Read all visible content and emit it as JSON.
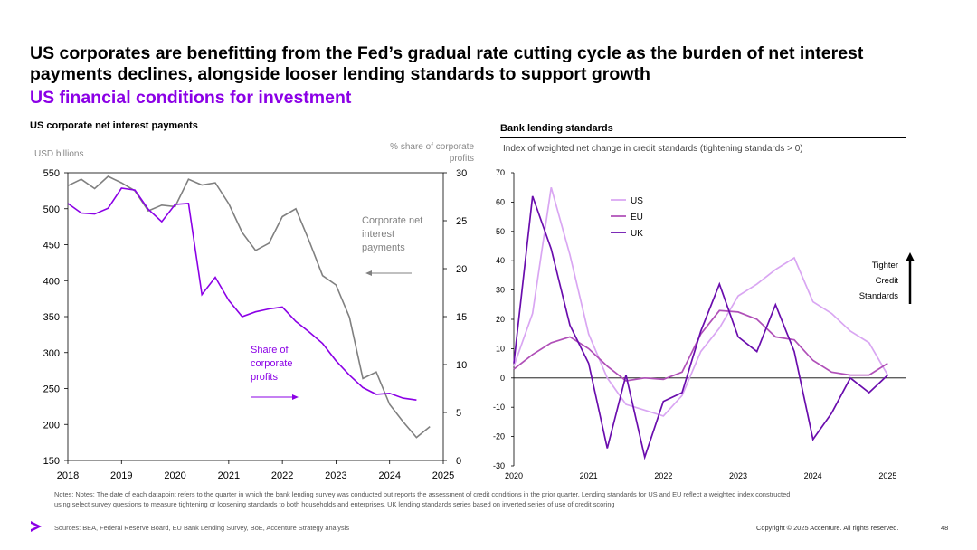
{
  "header": {
    "title": "US corporates are benefitting from the Fed’s gradual rate cutting cycle as the burden of net interest payments declines, alongside looser lending standards to support growth",
    "subtitle": "US financial conditions for investment"
  },
  "colors": {
    "accent": "#8b00e6",
    "grey_series": "#808080",
    "us": "#d9a6f2",
    "eu": "#b050b8",
    "uk": "#6a0dad"
  },
  "chart_data": [
    {
      "type": "line",
      "title": "US corporate net interest payments",
      "ylabel_left": "USD billions",
      "ylabel_right": "% share of corporate profits",
      "ylim_left": [
        150,
        550
      ],
      "ylim_right": [
        0,
        30
      ],
      "yticks_left": [
        "550",
        "500",
        "450",
        "400",
        "350",
        "300",
        "250",
        "200",
        "150"
      ],
      "yticks_right": [
        "30",
        "25",
        "20",
        "15",
        "10",
        "5",
        "0"
      ],
      "xlim": [
        2018,
        2025
      ],
      "xticks": [
        "2018",
        "2019",
        "2020",
        "2021",
        "2022",
        "2023",
        "2024",
        "2025"
      ],
      "series": [
        {
          "name": "Corporate net interest payments",
          "axis": "left",
          "color": "#808080",
          "label": "Corporate net interest payments",
          "x": [
            2018.0,
            2018.25,
            2018.5,
            2018.75,
            2019.0,
            2019.25,
            2019.5,
            2019.75,
            2020.0,
            2020.25,
            2020.5,
            2020.75,
            2021.0,
            2021.25,
            2021.5,
            2021.75,
            2022.0,
            2022.25,
            2022.5,
            2022.75,
            2023.0,
            2023.25,
            2023.5,
            2023.75,
            2024.0,
            2024.25,
            2024.5,
            2024.75,
            2025.0
          ],
          "values": [
            532,
            541,
            528,
            545,
            536,
            525,
            497,
            505,
            503,
            541,
            533,
            536,
            507,
            467,
            442,
            452,
            489,
            500,
            455,
            407,
            394,
            349,
            264,
            273,
            228,
            204,
            182,
            197,
            null
          ]
        },
        {
          "name": "Share of corporate profits",
          "axis": "right",
          "color": "#8b00e6",
          "label": "Share of corporate profits",
          "x": [
            2018.0,
            2018.25,
            2018.5,
            2018.75,
            2019.0,
            2019.25,
            2019.5,
            2019.75,
            2020.0,
            2020.25,
            2020.5,
            2020.75,
            2021.0,
            2021.25,
            2021.5,
            2021.75,
            2022.0,
            2022.25,
            2022.5,
            2022.75,
            2023.0,
            2023.25,
            2023.5,
            2023.75,
            2024.0,
            2024.25,
            2024.5,
            2024.75
          ],
          "values": [
            26.8,
            25.8,
            25.7,
            26.3,
            28.4,
            28.2,
            26.2,
            24.9,
            26.7,
            26.8,
            17.3,
            19.1,
            16.7,
            15.0,
            15.5,
            15.8,
            16.0,
            14.5,
            13.4,
            12.2,
            10.4,
            8.9,
            7.6,
            6.9,
            7.0,
            6.5,
            6.3,
            null
          ]
        }
      ]
    },
    {
      "type": "line",
      "title": "Bank lending standards",
      "ylabel": "Index of weighted net change in credit standards (tightening standards > 0)",
      "ylim": [
        -30,
        70
      ],
      "yticks": [
        "70",
        "60",
        "50",
        "40",
        "30",
        "20",
        "10",
        "0",
        "-10",
        "-20",
        "-30"
      ],
      "xlim": [
        2020,
        2025.25
      ],
      "xticks": [
        "2020",
        "2021",
        "2022",
        "2023",
        "2024",
        "2025"
      ],
      "annotation": [
        "Tighter",
        "Credit",
        "Standards"
      ],
      "series": [
        {
          "name": "US",
          "color": "#d9a6f2",
          "x": [
            2020.0,
            2020.25,
            2020.5,
            2020.75,
            2021.0,
            2021.25,
            2021.5,
            2021.75,
            2022.0,
            2022.25,
            2022.5,
            2022.75,
            2023.0,
            2023.25,
            2023.5,
            2023.75,
            2024.0,
            2024.25,
            2024.5,
            2024.75,
            2025.0,
            2025.25
          ],
          "values": [
            4,
            22,
            65,
            42,
            15,
            0,
            -9,
            -11,
            -13,
            -6,
            9,
            17,
            28,
            32,
            37,
            41,
            26,
            22,
            16,
            12,
            1,
            null
          ]
        },
        {
          "name": "EU",
          "color": "#b050b8",
          "x": [
            2020.0,
            2020.25,
            2020.5,
            2020.75,
            2021.0,
            2021.25,
            2021.5,
            2021.75,
            2022.0,
            2022.25,
            2022.5,
            2022.75,
            2023.0,
            2023.25,
            2023.5,
            2023.75,
            2024.0,
            2024.25,
            2024.5,
            2024.75,
            2025.0
          ],
          "values": [
            3,
            8,
            12,
            14,
            10,
            4,
            -1,
            0,
            -0.5,
            2,
            15,
            23,
            22.5,
            20,
            14,
            13,
            6,
            2,
            1,
            1,
            5
          ]
        },
        {
          "name": "UK",
          "color": "#6a0dad",
          "x": [
            2020.0,
            2020.25,
            2020.5,
            2020.75,
            2021.0,
            2021.25,
            2021.5,
            2021.75,
            2022.0,
            2022.25,
            2022.5,
            2022.75,
            2023.0,
            2023.25,
            2023.5,
            2023.75,
            2024.0,
            2024.25,
            2024.5,
            2024.75,
            2025.0
          ],
          "values": [
            5,
            62,
            44,
            18,
            5,
            -24,
            1,
            -27,
            -8,
            -5,
            16,
            32,
            14,
            9,
            25,
            9,
            -21,
            -12,
            0,
            -5,
            1
          ]
        }
      ]
    }
  ],
  "footer": {
    "notes": "Notes: Notes: The date of each datapoint refers to the quarter in which the bank lending survey was conducted but reports the assessment of credit conditions in the prior quarter. Lending standards for US and EU reflect a weighted index constructed using select survey questions to measure tightening or loosening standards to both households and enterprises. UK lending standards series based on inverted series of use of credit scoring",
    "sources": "Sources: BEA, Federal Reserve Board, EU Bank Lending Survey, BoE, Accenture Strategy analysis",
    "copyright": "Copyright © 2025 Accenture. All rights reserved.",
    "page_number": "48"
  }
}
